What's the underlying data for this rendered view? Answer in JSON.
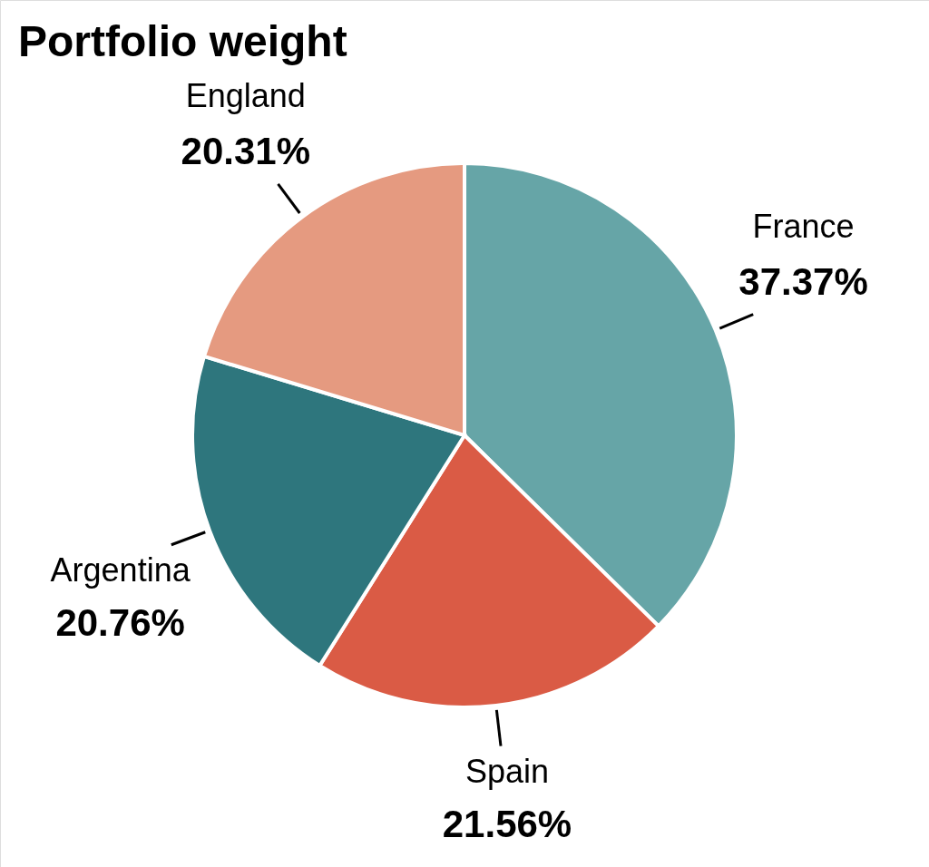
{
  "chart_data": {
    "type": "pie",
    "title": "Portfolio weight",
    "categories": [
      "France",
      "Spain",
      "Argentina",
      "England"
    ],
    "values": [
      37.37,
      21.56,
      20.76,
      20.31
    ],
    "value_labels": [
      "37.37%",
      "21.56%",
      "20.76%",
      "20.31%"
    ],
    "colors": [
      "#66a5a7",
      "#da5b45",
      "#2e767d",
      "#e59a80"
    ]
  }
}
